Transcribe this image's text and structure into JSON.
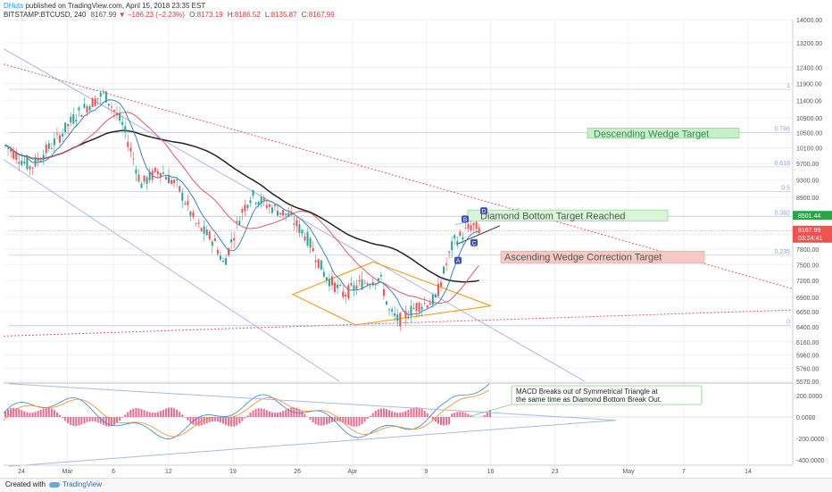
{
  "header": {
    "author": "DHuts",
    "published": "published on TradingView.com, April 15, 2018 23:35 EST"
  },
  "symbol_line": {
    "symbol": "BITSTAMP:BTCUSD, 240",
    "last": "8167.99",
    "change": "−186.23 (−2.23%)",
    "open_label": "O:",
    "open": "8173.19",
    "high_label": "H:",
    "high": "8186.52",
    "low_label": "L:",
    "low": "8135.87",
    "close_label": "C:",
    "close": "8167.99"
  },
  "footer": {
    "created": "Created with",
    "brand": "TradingView"
  },
  "colors": {
    "up": "#26a69a",
    "down": "#ef5350",
    "ma200": "#222222",
    "ma50": "#e05a6a",
    "ma20": "#3b82c4",
    "trend": "#a9b9e6",
    "dotted": "#e05a6a",
    "diamond": "#f0a020",
    "fib": "#8fa6d8"
  },
  "chart_data": [
    {
      "type": "candlestick",
      "title": "",
      "xlabel": "",
      "ylabel": "",
      "x_tick_labels": [
        "24",
        "Mar",
        "6",
        "12",
        "19",
        "26",
        "Apr",
        "9",
        "16",
        "23",
        "May",
        "7",
        "14"
      ],
      "y_tick_labels": [
        "14000.00",
        "13200.00",
        "12400.00",
        "11900.00",
        "11400.00",
        "10900.00",
        "10500.00",
        "10100.00",
        "9700.00",
        "9300.00",
        "8900.00",
        "8500.00",
        "8100.00",
        "7800.00",
        "7500.00",
        "7200.00",
        "6900.00",
        "6650.00",
        "6400.00",
        "6160.00",
        "5960.00",
        "5760.00",
        "5570.00"
      ],
      "ylim": [
        5570,
        14000
      ],
      "log_scale": true,
      "grid": true,
      "price_labels": {
        "high_marker": "8501.44",
        "last": "8167.99",
        "countdown": "03:24:41"
      },
      "fib_levels": [
        {
          "label": "1",
          "price": 11720
        },
        {
          "label": "0.786",
          "price": 10500
        },
        {
          "label": "0.618",
          "price": 9620
        },
        {
          "label": "0.5",
          "price": 9030
        },
        {
          "label": "0.382",
          "price": 8480
        },
        {
          "label": "0.236",
          "price": 7680
        },
        {
          "label": "0",
          "price": 6420
        }
      ],
      "annotations": {
        "descending_target": "Descending Wedge Target",
        "diamond_target": "Diamond Bottom Target Reached",
        "ascending_target": "Ascending Wedge Correction Target",
        "points": [
          "A",
          "B",
          "C",
          "D"
        ]
      },
      "close_path": [
        {
          "date": "2018-02-22",
          "close": 10200
        },
        {
          "date": "2018-02-25",
          "close": 9600
        },
        {
          "date": "2018-02-28",
          "close": 10350
        },
        {
          "date": "2018-03-02",
          "close": 11000
        },
        {
          "date": "2018-03-05",
          "close": 11600
        },
        {
          "date": "2018-03-07",
          "close": 10700
        },
        {
          "date": "2018-03-09",
          "close": 9200
        },
        {
          "date": "2018-03-11",
          "close": 9550
        },
        {
          "date": "2018-03-13",
          "close": 9150
        },
        {
          "date": "2018-03-15",
          "close": 8300
        },
        {
          "date": "2018-03-17",
          "close": 7950
        },
        {
          "date": "2018-03-18",
          "close": 7500
        },
        {
          "date": "2018-03-20",
          "close": 8600
        },
        {
          "date": "2018-03-21",
          "close": 8950
        },
        {
          "date": "2018-03-23",
          "close": 8700
        },
        {
          "date": "2018-03-25",
          "close": 8500
        },
        {
          "date": "2018-03-27",
          "close": 8050
        },
        {
          "date": "2018-03-29",
          "close": 7300
        },
        {
          "date": "2018-03-31",
          "close": 6950
        },
        {
          "date": "2018-04-02",
          "close": 7150
        },
        {
          "date": "2018-04-04",
          "close": 7250
        },
        {
          "date": "2018-04-05",
          "close": 6650
        },
        {
          "date": "2018-04-06",
          "close": 6500
        },
        {
          "date": "2018-04-08",
          "close": 6750
        },
        {
          "date": "2018-04-10",
          "close": 6850
        },
        {
          "date": "2018-04-12",
          "close": 7950
        },
        {
          "date": "2018-04-13",
          "close": 8100
        },
        {
          "date": "2018-04-14",
          "close": 8300
        },
        {
          "date": "2018-04-15",
          "close": 8168
        }
      ]
    },
    {
      "type": "line",
      "title": "",
      "xlabel": "",
      "ylabel": "",
      "y_tick_labels": [
        "200.0000",
        "0.0000",
        "-200.0000",
        "-400.0000"
      ],
      "ylim": [
        -450,
        300
      ],
      "annotation": "MACD Breaks out of Symmetrical Triangle at the same time as Diamond Bottom Break Out."
    }
  ]
}
